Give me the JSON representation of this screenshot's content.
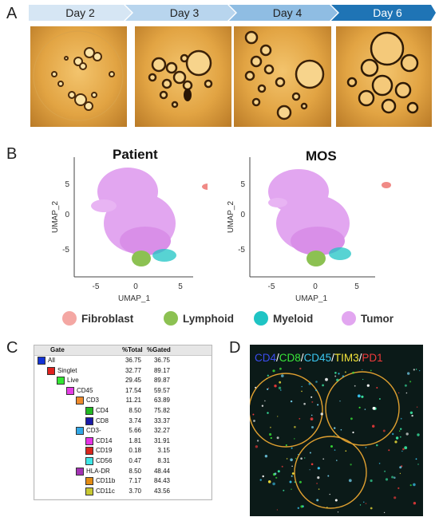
{
  "panels": {
    "a": "A",
    "b": "B",
    "c": "C",
    "d": "D"
  },
  "timeline": [
    {
      "label": "Day 2",
      "color": "#d6e6f4"
    },
    {
      "label": "Day 3",
      "color": "#b8d5ee"
    },
    {
      "label": "Day 4",
      "color": "#8fbde3"
    },
    {
      "label": "Day 6",
      "color": "#1f74b5",
      "text_color": "#ffffff"
    }
  ],
  "umap": {
    "left_title": "Patient",
    "right_title": "MOS",
    "xlabel": "UMAP_1",
    "ylabel": "UMAP_2",
    "x_ticks": [
      "-5",
      "0",
      "5"
    ],
    "y_ticks": [
      "5",
      "0",
      "-5"
    ]
  },
  "legend": [
    {
      "label": "Fibroblast",
      "color": "#f4a7a3"
    },
    {
      "label": "Lymphoid",
      "color": "#8cc152"
    },
    {
      "label": "Myeloid",
      "color": "#1fc4c4"
    },
    {
      "label": "Tumor",
      "color": "#e2a6f0"
    }
  ],
  "gating": {
    "headers": {
      "gate": "Gate",
      "total": "%Total",
      "gated": "%Gated"
    },
    "rows": [
      {
        "name": "All",
        "total": "36.75",
        "gated": "36.75",
        "level": 0,
        "color": "#1433d6"
      },
      {
        "name": "Singlet",
        "total": "32.77",
        "gated": "89.17",
        "level": 1,
        "color": "#e0211d"
      },
      {
        "name": "Live",
        "total": "29.45",
        "gated": "89.87",
        "level": 2,
        "color": "#33e633"
      },
      {
        "name": "CD45",
        "total": "17.54",
        "gated": "59.57",
        "level": 3,
        "color": "#e43de4"
      },
      {
        "name": "CD3",
        "total": "11.21",
        "gated": "63.89",
        "level": 4,
        "color": "#ee8a2a"
      },
      {
        "name": "CD4",
        "total": "8.50",
        "gated": "75.82",
        "level": 5,
        "color": "#22b822"
      },
      {
        "name": "CD8",
        "total": "3.74",
        "gated": "33.37",
        "level": 5,
        "color": "#1a1aa8"
      },
      {
        "name": "CD3-",
        "total": "5.66",
        "gated": "32.27",
        "level": 4,
        "color": "#31a7e6"
      },
      {
        "name": "CD14",
        "total": "1.81",
        "gated": "31.91",
        "level": 5,
        "color": "#e534e5"
      },
      {
        "name": "CD19",
        "total": "0.18",
        "gated": "3.15",
        "level": 5,
        "color": "#d9261c"
      },
      {
        "name": "CD56",
        "total": "0.47",
        "gated": "8.31",
        "level": 5,
        "color": "#3fe6e6"
      },
      {
        "name": "HLA-DR",
        "total": "8.50",
        "gated": "48.44",
        "level": 4,
        "color": "#a332b3"
      },
      {
        "name": "CD11b",
        "total": "7.17",
        "gated": "84.43",
        "level": 5,
        "color": "#e38c14"
      },
      {
        "name": "CD11c",
        "total": "3.70",
        "gated": "43.56",
        "level": 5,
        "color": "#c8c832"
      }
    ]
  },
  "fluorescence": {
    "markers": [
      {
        "label": "CD4",
        "color": "#3b4df0"
      },
      {
        "label": "/",
        "color": "#ffffff"
      },
      {
        "label": "CD8",
        "color": "#39e639"
      },
      {
        "label": "/",
        "color": "#ffffff"
      },
      {
        "label": "CD45",
        "color": "#39c6f0"
      },
      {
        "label": "/",
        "color": "#ffffff"
      },
      {
        "label": "TIM3",
        "color": "#f2e33a"
      },
      {
        "label": "/",
        "color": "#ffffff"
      },
      {
        "label": "PD1",
        "color": "#f03a3a"
      }
    ]
  }
}
